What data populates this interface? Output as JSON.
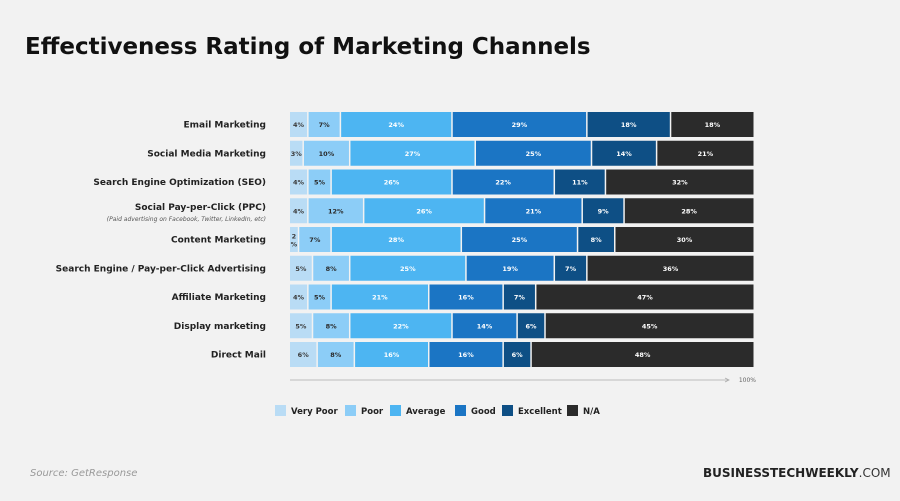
{
  "title": "Effectiveness Rating of Marketing Channels",
  "source": "Source: GetResponse",
  "brand": {
    "bold": "BUSINESSTECHWEEKLY",
    "light": ".COM"
  },
  "chart_data": {
    "type": "bar",
    "orientation": "horizontal",
    "stacked": true,
    "title": "Effectiveness Rating of Marketing Channels",
    "categories": [
      "Email Marketing",
      "Social Media Marketing",
      "Search Engine Optimization (SEO)",
      "Social Pay-per-Click (PPC)",
      "Content Marketing",
      "Search Engine / Pay-per-Click Advertising",
      "Affiliate Marketing",
      "Display marketing",
      "Direct Mail"
    ],
    "category_notes": [
      "",
      "",
      "",
      "(Paid advertising on Facebook, Twitter, LinkedIn, etc)",
      "",
      "",
      "",
      "",
      ""
    ],
    "series": [
      {
        "name": "Very Poor",
        "color": "#b9dcf5",
        "label_color": "#3a3a3a",
        "values": [
          4,
          3,
          4,
          4,
          2,
          5,
          4,
          5,
          6
        ],
        "labels": [
          "4%",
          "3%",
          "4%",
          "4%",
          "2 %",
          "5%",
          "4%",
          "5%",
          "6%"
        ]
      },
      {
        "name": "Poor",
        "color": "#8ccdf7",
        "label_color": "#2a2a2a",
        "values": [
          7,
          10,
          5,
          12,
          7,
          8,
          5,
          8,
          8
        ],
        "labels": [
          "7%",
          "10%",
          "5%",
          "12%",
          "7%",
          "8%",
          "5%",
          "8%",
          "8%"
        ]
      },
      {
        "name": "Average",
        "color": "#4db5f2",
        "label_color": "#ffffff",
        "values": [
          24,
          27,
          26,
          26,
          28,
          25,
          21,
          22,
          16
        ],
        "labels": [
          "24%",
          "27%",
          "26%",
          "26%",
          "28%",
          "25%",
          "21%",
          "22%",
          "16%"
        ]
      },
      {
        "name": "Good",
        "color": "#1b75c4",
        "label_color": "#ffffff",
        "values": [
          29,
          25,
          22,
          21,
          25,
          19,
          16,
          14,
          16
        ],
        "labels": [
          "29%",
          "25%",
          "22%",
          "21%",
          "25%",
          "19%",
          "16%",
          "14%",
          "16%"
        ]
      },
      {
        "name": "Excellent",
        "color": "#0e4f85",
        "label_color": "#ffffff",
        "values": [
          18,
          14,
          11,
          9,
          8,
          7,
          7,
          6,
          6
        ],
        "labels": [
          "18%",
          "14%",
          "11%",
          "9%",
          "8%",
          "7%",
          "7%",
          "6%",
          "6%"
        ]
      },
      {
        "name": "N/A",
        "color": "#2b2b2b",
        "label_color": "#ffffff",
        "values": [
          18,
          21,
          32,
          28,
          30,
          36,
          47,
          45,
          48
        ],
        "labels": [
          "18%",
          "21%",
          "32%",
          "28%",
          "30%",
          "36%",
          "47%",
          "45%",
          "48%"
        ]
      }
    ],
    "axis_end_label": "100%",
    "legend_position": "bottom-center",
    "grid": false
  }
}
